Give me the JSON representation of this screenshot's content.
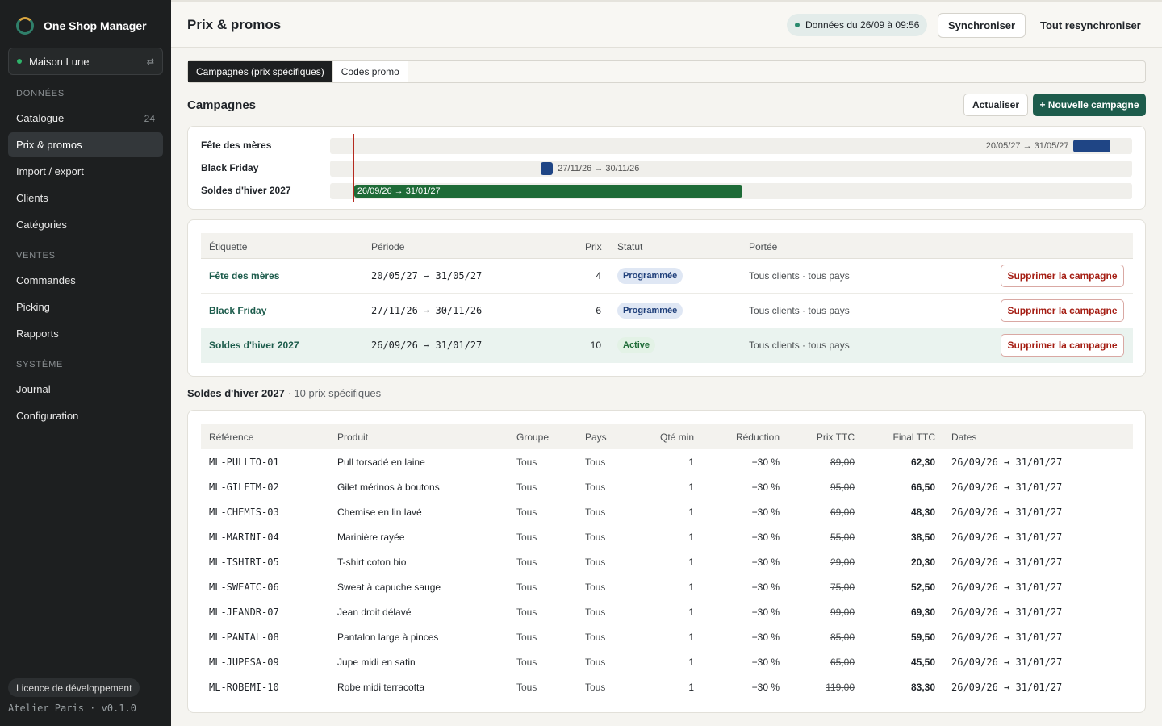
{
  "app": {
    "name": "One Shop Manager",
    "shop": "Maison Lune",
    "license": "Licence de développement",
    "footer": "Atelier Paris · v0.1.0"
  },
  "nav": {
    "sections": [
      {
        "title": "DONNÉES",
        "items": [
          {
            "label": "Catalogue",
            "count": "24"
          },
          {
            "label": "Prix & promos"
          },
          {
            "label": "Import / export"
          },
          {
            "label": "Clients"
          },
          {
            "label": "Catégories"
          }
        ]
      },
      {
        "title": "VENTES",
        "items": [
          {
            "label": "Commandes"
          },
          {
            "label": "Picking"
          },
          {
            "label": "Rapports"
          }
        ]
      },
      {
        "title": "SYSTÈME",
        "items": [
          {
            "label": "Journal"
          },
          {
            "label": "Configuration"
          }
        ]
      }
    ]
  },
  "header": {
    "title": "Prix & promos",
    "data_status": "Données du 26/09 à 09:56",
    "sync": "Synchroniser",
    "resync_all": "Tout resynchroniser"
  },
  "tabs": [
    "Campagnes (prix spécifiques)",
    "Codes promo"
  ],
  "campaigns_section": {
    "title": "Campagnes",
    "refresh": "Actualiser",
    "new": "+ Nouvelle campagne"
  },
  "timeline": [
    {
      "label": "Fête des mères",
      "range": "20/05/27 → 31/05/27",
      "color": "#1f4585",
      "start_frac": 0.927,
      "end_frac": 0.973
    },
    {
      "label": "Black Friday",
      "range": "27/11/26 → 30/11/26",
      "color": "#1f4585",
      "start_frac": 0.263,
      "end_frac": 0.278
    },
    {
      "label": "Soldes d'hiver 2027",
      "range": "26/09/26 → 31/01/27",
      "color": "#1e6b37",
      "start_frac": 0.03,
      "end_frac": 0.514
    }
  ],
  "campaigns_table": {
    "headers": [
      "Étiquette",
      "Période",
      "Prix",
      "Statut",
      "Portée"
    ],
    "delete_label": "Supprimer la campagne",
    "rows": [
      {
        "label": "Fête des mères",
        "period": "20/05/27 → 31/05/27",
        "count": "4",
        "status": "Programmée",
        "scope": "Tous clients · tous pays"
      },
      {
        "label": "Black Friday",
        "period": "27/11/26 → 30/11/26",
        "count": "6",
        "status": "Programmée",
        "scope": "Tous clients · tous pays"
      },
      {
        "label": "Soldes d'hiver 2027",
        "period": "26/09/26 → 31/01/27",
        "count": "10",
        "status": "Active",
        "scope": "Tous clients · tous pays"
      }
    ]
  },
  "prices": {
    "title": "Soldes d'hiver 2027",
    "subtitle": "· 10 prix spécifiques",
    "headers": [
      "Référence",
      "Produit",
      "Groupe",
      "Pays",
      "Qté min",
      "Réduction",
      "Prix TTC",
      "Final TTC",
      "Dates"
    ],
    "rows": [
      {
        "ref": "ML-PULLTO-01",
        "product": "Pull torsadé en laine",
        "group": "Tous",
        "country": "Tous",
        "qty": "1",
        "reduction": "−30 %",
        "price": "89,00",
        "final": "62,30",
        "dates": "26/09/26 → 31/01/27"
      },
      {
        "ref": "ML-GILETM-02",
        "product": "Gilet mérinos à boutons",
        "group": "Tous",
        "country": "Tous",
        "qty": "1",
        "reduction": "−30 %",
        "price": "95,00",
        "final": "66,50",
        "dates": "26/09/26 → 31/01/27"
      },
      {
        "ref": "ML-CHEMIS-03",
        "product": "Chemise en lin lavé",
        "group": "Tous",
        "country": "Tous",
        "qty": "1",
        "reduction": "−30 %",
        "price": "69,00",
        "final": "48,30",
        "dates": "26/09/26 → 31/01/27"
      },
      {
        "ref": "ML-MARINI-04",
        "product": "Marinière rayée",
        "group": "Tous",
        "country": "Tous",
        "qty": "1",
        "reduction": "−30 %",
        "price": "55,00",
        "final": "38,50",
        "dates": "26/09/26 → 31/01/27"
      },
      {
        "ref": "ML-TSHIRT-05",
        "product": "T-shirt coton bio",
        "group": "Tous",
        "country": "Tous",
        "qty": "1",
        "reduction": "−30 %",
        "price": "29,00",
        "final": "20,30",
        "dates": "26/09/26 → 31/01/27"
      },
      {
        "ref": "ML-SWEATC-06",
        "product": "Sweat à capuche sauge",
        "group": "Tous",
        "country": "Tous",
        "qty": "1",
        "reduction": "−30 %",
        "price": "75,00",
        "final": "52,50",
        "dates": "26/09/26 → 31/01/27"
      },
      {
        "ref": "ML-JEANDR-07",
        "product": "Jean droit délavé",
        "group": "Tous",
        "country": "Tous",
        "qty": "1",
        "reduction": "−30 %",
        "price": "99,00",
        "final": "69,30",
        "dates": "26/09/26 → 31/01/27"
      },
      {
        "ref": "ML-PANTAL-08",
        "product": "Pantalon large à pinces",
        "group": "Tous",
        "country": "Tous",
        "qty": "1",
        "reduction": "−30 %",
        "price": "85,00",
        "final": "59,50",
        "dates": "26/09/26 → 31/01/27"
      },
      {
        "ref": "ML-JUPESA-09",
        "product": "Jupe midi en satin",
        "group": "Tous",
        "country": "Tous",
        "qty": "1",
        "reduction": "−30 %",
        "price": "65,00",
        "final": "45,50",
        "dates": "26/09/26 → 31/01/27"
      },
      {
        "ref": "ML-ROBEMI-10",
        "product": "Robe midi terracotta",
        "group": "Tous",
        "country": "Tous",
        "qty": "1",
        "reduction": "−30 %",
        "price": "119,00",
        "final": "83,30",
        "dates": "26/09/26 → 31/01/27"
      }
    ]
  }
}
